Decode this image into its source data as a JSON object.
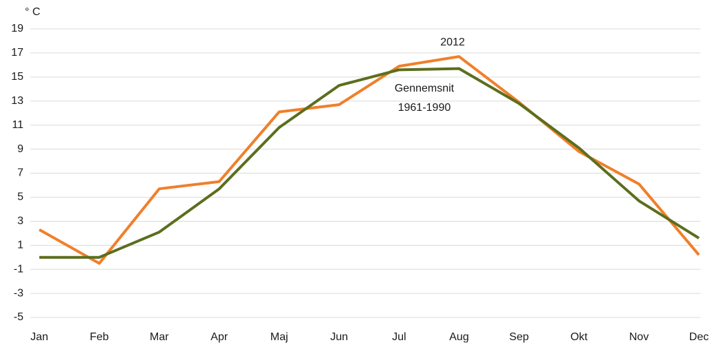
{
  "chart_data": {
    "type": "line",
    "unit_label": "° C",
    "categories": [
      "Jan",
      "Feb",
      "Mar",
      "Apr",
      "Maj",
      "Jun",
      "Jul",
      "Aug",
      "Sep",
      "Okt",
      "Nov",
      "Dec"
    ],
    "series": [
      {
        "label": [
          "2012"
        ],
        "color": "#f07f2a",
        "values": [
          2.3,
          -0.5,
          5.7,
          6.3,
          12.1,
          12.7,
          15.9,
          16.7,
          12.9,
          8.8,
          6.1,
          0.2
        ]
      },
      {
        "label": [
          "Gennemsnit",
          "1961-1990"
        ],
        "color": "#5b6e1e",
        "values": [
          0,
          0,
          2.1,
          5.7,
          10.8,
          14.3,
          15.6,
          15.7,
          12.8,
          9.1,
          4.7,
          1.6
        ]
      }
    ],
    "ylim": [
      -5,
      19
    ],
    "yticks": [
      -5,
      -3,
      -1,
      1,
      3,
      5,
      7,
      9,
      11,
      13,
      15,
      17,
      19
    ],
    "grid": true
  }
}
